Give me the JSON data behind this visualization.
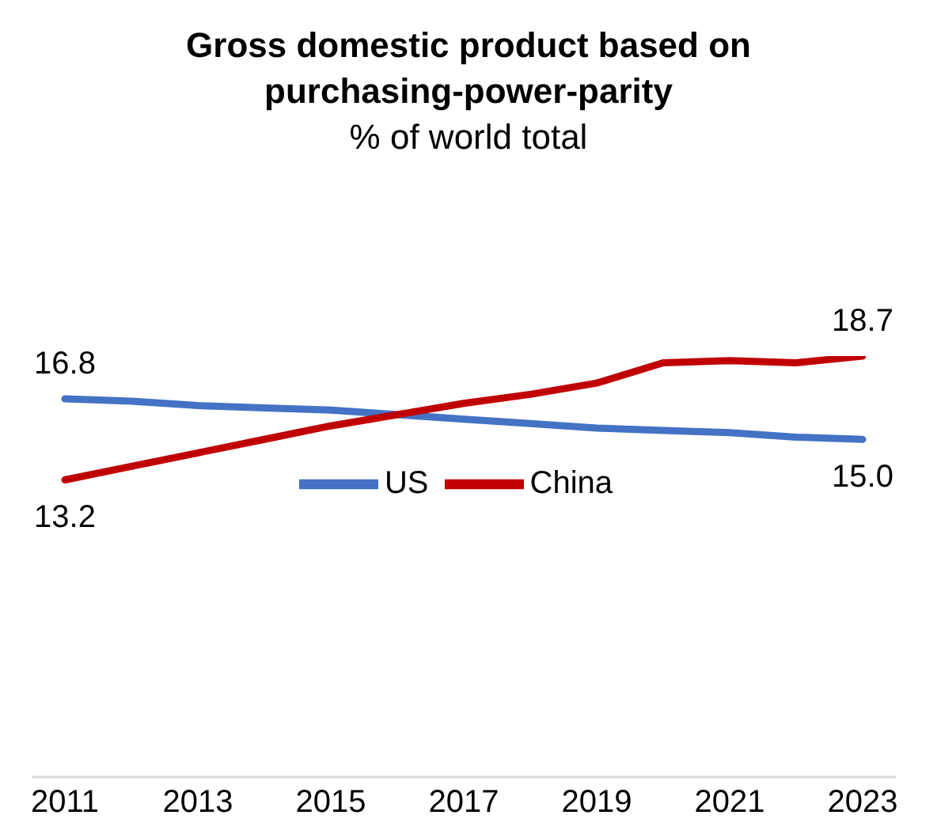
{
  "chart_data": {
    "type": "line",
    "title": "Gross domestic product based on purchasing-power-parity",
    "subtitle": "% of world total",
    "categories": [
      "2011",
      null,
      "2013",
      null,
      "2015",
      null,
      "2017",
      null,
      "2019",
      null,
      "2021",
      null,
      "2023"
    ],
    "series": [
      {
        "name": "US",
        "color": "#4472c4",
        "values": [
          16.8,
          16.7,
          16.5,
          16.4,
          16.3,
          16.1,
          15.9,
          15.7,
          15.5,
          15.4,
          15.3,
          15.1,
          15.0
        ],
        "value_labels": [
          "16.8",
          null,
          null,
          null,
          null,
          null,
          null,
          null,
          null,
          null,
          null,
          null,
          "15.0"
        ]
      },
      {
        "name": "China",
        "color": "#c00000",
        "values": [
          13.2,
          13.8,
          14.4,
          15.0,
          15.6,
          16.1,
          16.6,
          17.0,
          17.5,
          18.4,
          18.5,
          18.4,
          18.7
        ],
        "value_labels": [
          "13.2",
          null,
          null,
          null,
          null,
          null,
          null,
          null,
          null,
          null,
          null,
          null,
          "18.7"
        ]
      }
    ],
    "tick_labels": "x",
    "legend": "center",
    "marker": "none",
    "line_style": "solid"
  }
}
